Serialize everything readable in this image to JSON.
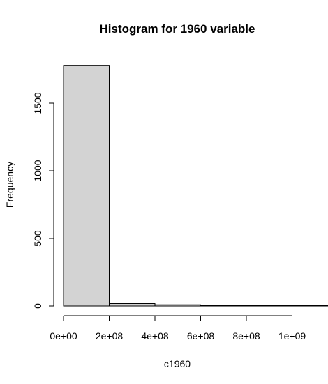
{
  "chart_data": {
    "type": "bar",
    "title": "Histogram for 1960 variable",
    "xlabel": "c1960",
    "ylabel": "Frequency",
    "bin_width": 200000000,
    "bins": [
      {
        "from": 0,
        "to": 200000000,
        "count": 1780
      },
      {
        "from": 200000000,
        "to": 400000000,
        "count": 18
      },
      {
        "from": 400000000,
        "to": 600000000,
        "count": 9
      },
      {
        "from": 600000000,
        "to": 800000000,
        "count": 3
      },
      {
        "from": 800000000,
        "to": 1000000000,
        "count": 2
      },
      {
        "from": 1000000000,
        "to": 1200000000,
        "count": 1
      }
    ],
    "x_ticks": [
      {
        "value": 0,
        "label": "0e+00"
      },
      {
        "value": 200000000,
        "label": "2e+08"
      },
      {
        "value": 400000000,
        "label": "4e+08"
      },
      {
        "value": 600000000,
        "label": "6e+08"
      },
      {
        "value": 800000000,
        "label": "8e+08"
      },
      {
        "value": 1000000000,
        "label": "1e+09"
      }
    ],
    "y_ticks": [
      {
        "value": 0,
        "label": "0"
      },
      {
        "value": 500,
        "label": "500"
      },
      {
        "value": 1000,
        "label": "1000"
      },
      {
        "value": 1500,
        "label": "1500"
      }
    ],
    "colors": {
      "bar_fill": "#d3d3d3",
      "bar_stroke": "#000000"
    }
  }
}
